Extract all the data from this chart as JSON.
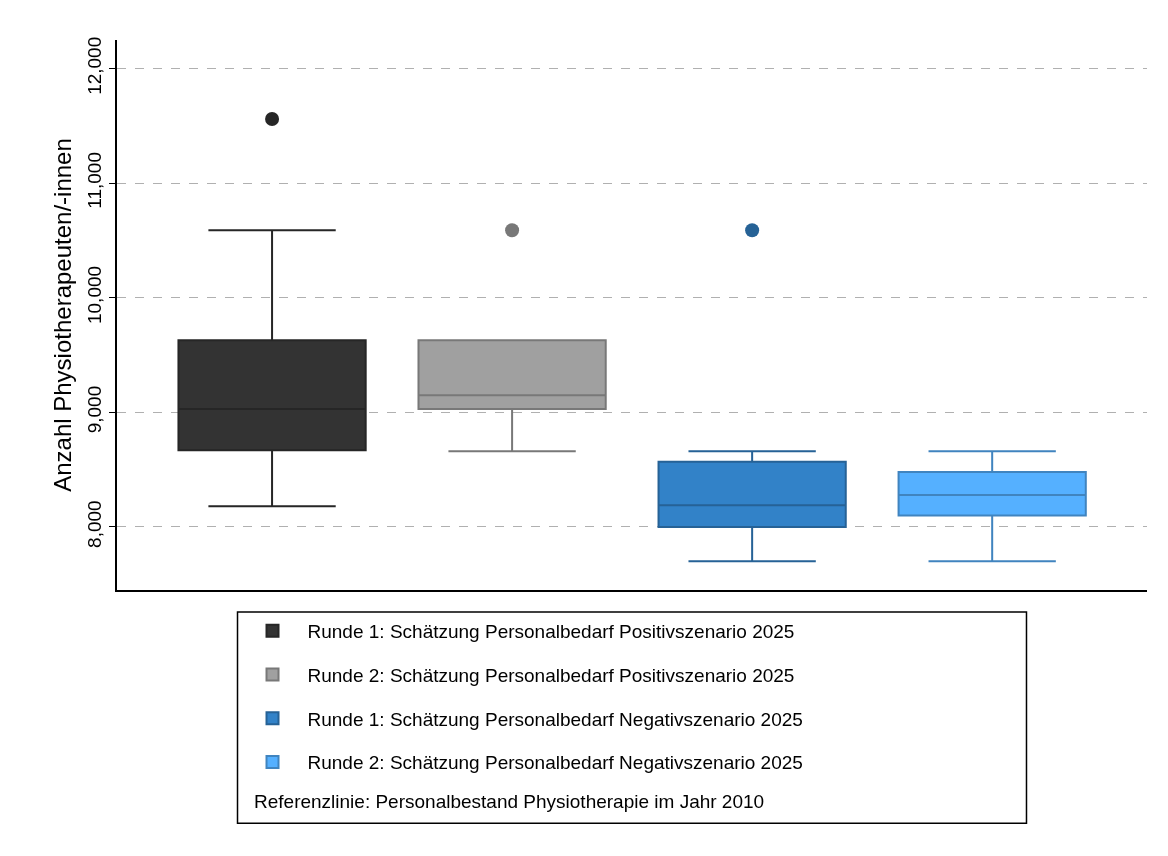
{
  "chart_data": {
    "type": "box",
    "ylabel": "Anzahl Physiotherapeuten/-innen",
    "categories": [
      null,
      null,
      null,
      null
    ],
    "series": [
      {
        "name": "Runde 1: Schätzung Personalbedarf Positivszenario 2025",
        "color": "#333333",
        "boxes": [
          {
            "low": 8180,
            "q1": 8670,
            "median": 9030,
            "q3": 9630,
            "high": 10590,
            "outliers": [
              11560
            ]
          },
          null,
          null,
          null
        ]
      },
      {
        "name": "Runde 2: Schätzung Personalbedarf Positivszenario 2025",
        "color": "#a0a0a0",
        "boxes": [
          null,
          {
            "low": 8660,
            "q1": 9030,
            "median": 9150,
            "q3": 9630,
            "high": 9630,
            "outliers": [
              10590
            ]
          },
          null,
          null
        ]
      },
      {
        "name": "Runde 1: Schätzung Personalbedarf Negativszenario 2025",
        "color": "#3282c8",
        "boxes": [
          null,
          null,
          {
            "low": 7700,
            "q1": 8000,
            "median": 8190,
            "q3": 8570,
            "high": 8660,
            "outliers": [
              10590
            ]
          },
          null
        ]
      },
      {
        "name": "Runde 2: Schätzung Personalbedarf Negativszenario 2025",
        "color": "#55b0ff",
        "boxes": [
          null,
          null,
          null,
          {
            "low": 7700,
            "q1": 8100,
            "median": 8280,
            "q3": 8480,
            "high": 8660
          }
        ]
      }
    ],
    "annotations": [
      "Referenzlinie: Personalbestand Physiotherapie im Jahr 2010"
    ],
    "ylim": [
      7450,
      12250
    ],
    "yticks": [
      {
        "value": 8000,
        "label": "8,000"
      },
      {
        "value": 9000,
        "label": "9,000"
      },
      {
        "value": 10000,
        "label": "10,000"
      },
      {
        "value": 11000,
        "label": "11,000"
      },
      {
        "value": 12000,
        "label": "12,000"
      }
    ],
    "grid": "y",
    "legend": "bottom",
    "marker": "circle"
  }
}
